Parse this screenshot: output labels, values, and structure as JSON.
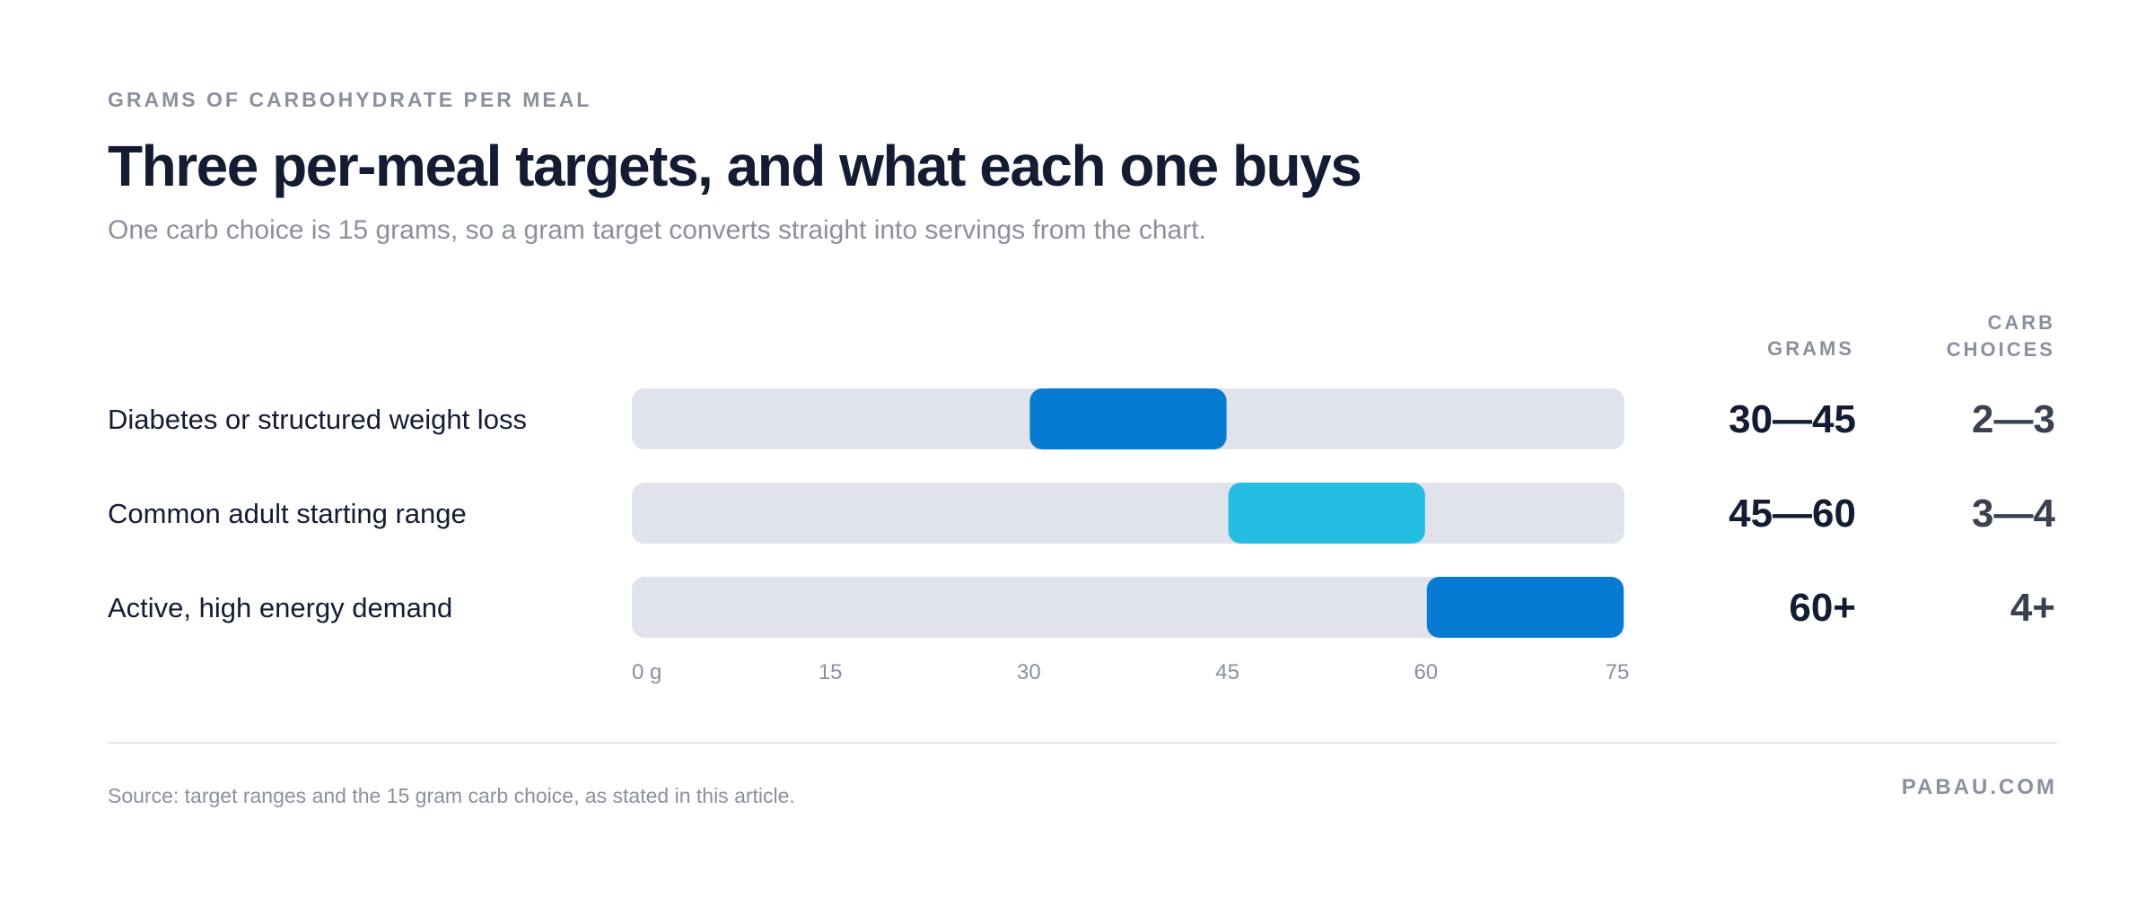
{
  "header": {
    "eyebrow": "GRAMS OF CARBOHYDRATE PER MEAL",
    "title": "Three per-meal targets, and what each one buys",
    "subtitle": "One carb choice is 15 grams, so a gram target converts straight into servings from the chart."
  },
  "columns": {
    "grams": "GRAMS",
    "choices_line1": "CARB",
    "choices_line2": "CHOICES"
  },
  "chart_data": {
    "type": "bar",
    "orientation": "horizontal-range",
    "xlim": [
      0,
      75
    ],
    "x_ticks": [
      0,
      15,
      30,
      45,
      60,
      75
    ],
    "x_tick_labels": [
      "0 g",
      "15",
      "30",
      "45",
      "60",
      "75"
    ],
    "grid": false,
    "categories": [
      "Diabetes or structured weight loss",
      "Common adult starting range",
      "Active, high energy demand"
    ],
    "ranges": [
      {
        "start": 30,
        "end": 45,
        "color": "#077bd4",
        "grams_label": "30—45",
        "choices_label": "2—3"
      },
      {
        "start": 45,
        "end": 60,
        "color": "#26bde2",
        "grams_label": "45—60",
        "choices_label": "3—4"
      },
      {
        "start": 60,
        "end": 75,
        "color": "#077bd4",
        "grams_label": "60+",
        "choices_label": "4+"
      }
    ],
    "track_color": "#e0e3ec"
  },
  "footer": {
    "source": "Source: target ranges and the 15 gram carb choice, as stated in this article.",
    "brand": "PABAU.COM"
  }
}
